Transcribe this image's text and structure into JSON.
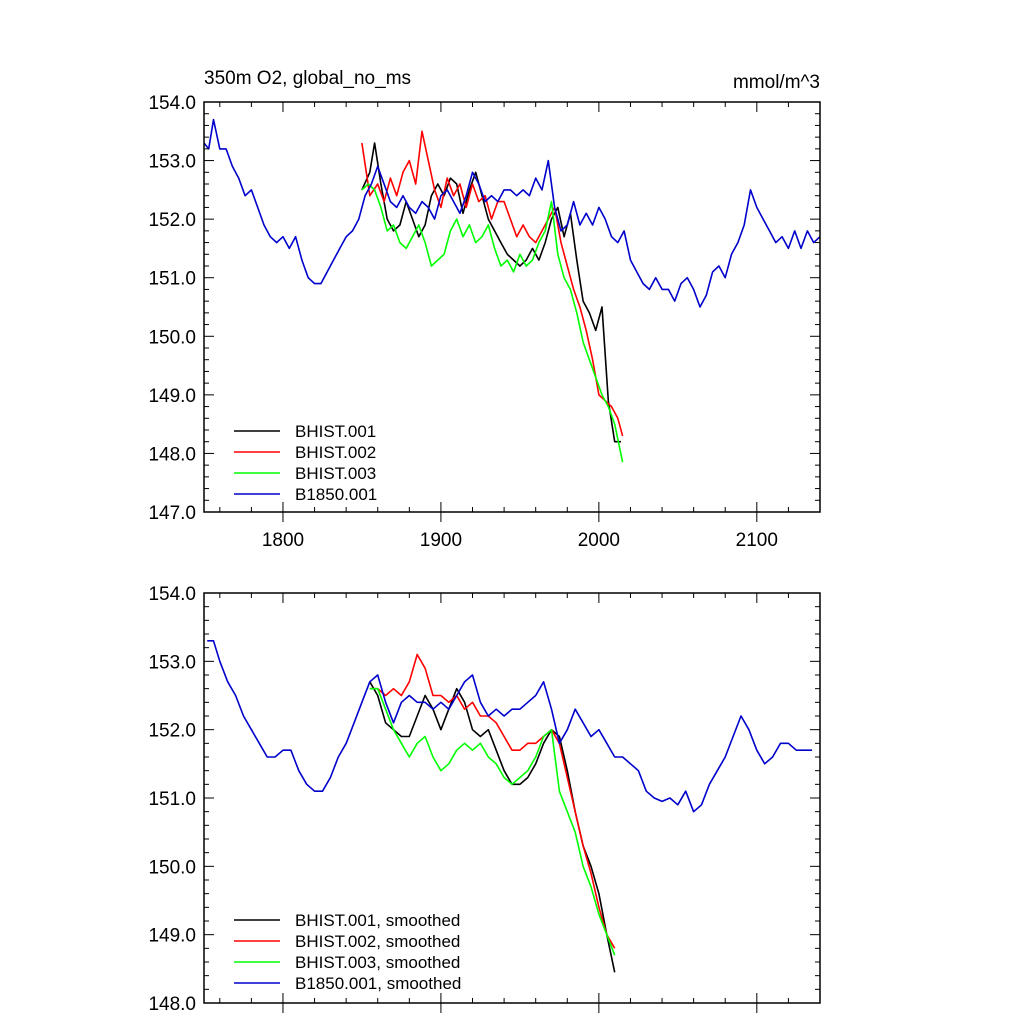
{
  "chart_data": [
    {
      "type": "line",
      "title": "350m O2, global_no_ms",
      "units": "mmol/m^3",
      "xlim": [
        1750,
        2140
      ],
      "ylim": [
        147.0,
        154.0
      ],
      "x_ticks": [
        1800,
        1900,
        2000,
        2100
      ],
      "x_tick_labels": [
        "1800",
        "1900",
        "2000",
        "2100"
      ],
      "y_ticks": [
        147,
        148,
        149,
        150,
        151,
        152,
        153,
        154
      ],
      "y_tick_labels": [
        "147.0",
        "148.0",
        "149.0",
        "150.0",
        "151.0",
        "152.0",
        "153.0",
        "154.0"
      ],
      "legend_position": "bottom-left",
      "series": [
        {
          "name": "BHIST.001",
          "color": "#000000",
          "x": [
            1850,
            1855,
            1858,
            1862,
            1866,
            1870,
            1874,
            1878,
            1882,
            1886,
            1890,
            1894,
            1898,
            1902,
            1906,
            1910,
            1914,
            1918,
            1922,
            1926,
            1930,
            1934,
            1938,
            1942,
            1946,
            1950,
            1954,
            1958,
            1962,
            1966,
            1970,
            1974,
            1978,
            1982,
            1986,
            1990,
            1994,
            1998,
            2002,
            2006,
            2010,
            2014
          ],
          "y": [
            152.5,
            152.8,
            153.3,
            152.6,
            152.0,
            151.8,
            151.9,
            152.3,
            152.0,
            151.7,
            151.9,
            152.4,
            152.6,
            152.4,
            152.7,
            152.6,
            152.1,
            152.5,
            152.8,
            152.4,
            152.0,
            151.8,
            151.6,
            151.4,
            151.3,
            151.2,
            151.3,
            151.5,
            151.3,
            151.6,
            152.0,
            152.2,
            151.7,
            152.1,
            151.3,
            150.6,
            150.4,
            150.1,
            150.5,
            148.9,
            148.2,
            148.2
          ]
        },
        {
          "name": "BHIST.002",
          "color": "#ff0000",
          "x": [
            1850,
            1855,
            1860,
            1864,
            1868,
            1872,
            1876,
            1880,
            1884,
            1888,
            1892,
            1896,
            1900,
            1904,
            1908,
            1912,
            1916,
            1920,
            1924,
            1928,
            1932,
            1936,
            1940,
            1944,
            1948,
            1952,
            1956,
            1960,
            1964,
            1968,
            1972,
            1976,
            1980,
            1984,
            1988,
            1992,
            1996,
            2000,
            2004,
            2008,
            2012,
            2015
          ],
          "y": [
            153.3,
            152.4,
            152.6,
            152.3,
            152.7,
            152.4,
            152.8,
            153.0,
            152.6,
            153.5,
            153.0,
            152.5,
            152.2,
            152.7,
            152.4,
            152.6,
            152.2,
            152.6,
            152.3,
            152.4,
            152.0,
            152.3,
            152.3,
            152.0,
            151.7,
            151.9,
            151.7,
            151.6,
            151.8,
            152.0,
            152.2,
            151.6,
            151.2,
            150.8,
            150.5,
            150.1,
            149.6,
            149.0,
            148.9,
            148.8,
            148.6,
            148.3
          ]
        },
        {
          "name": "BHIST.003",
          "color": "#00ff00",
          "x": [
            1850,
            1854,
            1858,
            1862,
            1866,
            1870,
            1874,
            1878,
            1882,
            1886,
            1890,
            1894,
            1898,
            1902,
            1906,
            1910,
            1914,
            1918,
            1922,
            1926,
            1930,
            1934,
            1938,
            1942,
            1946,
            1950,
            1954,
            1958,
            1962,
            1966,
            1970,
            1974,
            1978,
            1982,
            1986,
            1990,
            1994,
            1998,
            2002,
            2006,
            2010,
            2015
          ],
          "y": [
            152.5,
            152.6,
            152.5,
            152.2,
            151.8,
            151.9,
            151.6,
            151.5,
            151.7,
            151.9,
            151.6,
            151.2,
            151.3,
            151.4,
            151.8,
            152.0,
            151.7,
            151.9,
            151.6,
            151.7,
            151.9,
            151.5,
            151.2,
            151.3,
            151.1,
            151.4,
            151.2,
            151.3,
            151.6,
            151.8,
            152.3,
            151.4,
            151.0,
            150.8,
            150.4,
            149.9,
            149.6,
            149.3,
            149.0,
            148.8,
            148.5,
            147.85
          ]
        },
        {
          "name": "B1850.001",
          "color": "#0000cc",
          "x": [
            1750,
            1753,
            1756,
            1760,
            1764,
            1768,
            1772,
            1776,
            1780,
            1784,
            1788,
            1792,
            1796,
            1800,
            1804,
            1808,
            1812,
            1816,
            1820,
            1824,
            1828,
            1832,
            1836,
            1840,
            1844,
            1848,
            1852,
            1856,
            1860,
            1864,
            1868,
            1872,
            1876,
            1880,
            1884,
            1888,
            1892,
            1896,
            1900,
            1904,
            1908,
            1912,
            1916,
            1920,
            1924,
            1928,
            1932,
            1936,
            1940,
            1944,
            1948,
            1952,
            1956,
            1960,
            1964,
            1968,
            1972,
            1976,
            1980,
            1984,
            1988,
            1992,
            1996,
            2000,
            2004,
            2008,
            2012,
            2016,
            2020,
            2024,
            2028,
            2032,
            2036,
            2040,
            2044,
            2048,
            2052,
            2056,
            2060,
            2064,
            2068,
            2072,
            2076,
            2080,
            2084,
            2088,
            2092,
            2096,
            2100,
            2104,
            2108,
            2112,
            2116,
            2120,
            2124,
            2128,
            2132,
            2136,
            2140
          ],
          "y": [
            153.3,
            153.2,
            153.7,
            153.2,
            153.2,
            152.9,
            152.7,
            152.4,
            152.5,
            152.2,
            151.9,
            151.7,
            151.6,
            151.7,
            151.5,
            151.7,
            151.3,
            151.0,
            150.9,
            150.9,
            151.1,
            151.3,
            151.5,
            151.7,
            151.8,
            152.0,
            152.4,
            152.6,
            152.9,
            152.6,
            152.3,
            152.2,
            152.4,
            152.2,
            152.1,
            152.3,
            152.2,
            152.0,
            152.4,
            152.5,
            152.3,
            152.1,
            152.4,
            152.8,
            152.6,
            152.3,
            152.4,
            152.3,
            152.5,
            152.5,
            152.4,
            152.5,
            152.4,
            152.7,
            152.5,
            153.0,
            152.2,
            151.8,
            151.9,
            152.3,
            151.9,
            152.1,
            151.9,
            152.2,
            152.0,
            151.7,
            151.6,
            151.8,
            151.3,
            151.1,
            150.9,
            150.8,
            151.0,
            150.8,
            150.8,
            150.6,
            150.9,
            151.0,
            150.8,
            150.5,
            150.7,
            151.1,
            151.2,
            151.0,
            151.4,
            151.6,
            151.9,
            152.5,
            152.2,
            152.0,
            151.8,
            151.6,
            151.7,
            151.5,
            151.8,
            151.5,
            151.8,
            151.6,
            151.7
          ]
        }
      ]
    },
    {
      "type": "line",
      "xlim": [
        1750,
        2140
      ],
      "ylim": [
        148.0,
        154.0
      ],
      "x_ticks": [
        1800,
        1900,
        2000,
        2100
      ],
      "y_ticks": [
        148,
        149,
        150,
        151,
        152,
        153,
        154
      ],
      "y_tick_labels": [
        "148.0",
        "149.0",
        "150.0",
        "151.0",
        "152.0",
        "153.0",
        "154.0"
      ],
      "legend_position": "bottom-left",
      "series": [
        {
          "name": "BHIST.001, smoothed",
          "color": "#000000",
          "x": [
            1855,
            1860,
            1865,
            1870,
            1875,
            1880,
            1885,
            1890,
            1895,
            1900,
            1905,
            1910,
            1915,
            1920,
            1925,
            1930,
            1935,
            1940,
            1945,
            1950,
            1955,
            1960,
            1965,
            1970,
            1975,
            1980,
            1985,
            1990,
            1995,
            2000,
            2005,
            2010
          ],
          "y": [
            152.7,
            152.5,
            152.1,
            152.0,
            151.9,
            151.9,
            152.2,
            152.5,
            152.3,
            152.0,
            152.3,
            152.6,
            152.4,
            152.0,
            151.9,
            152.0,
            151.7,
            151.4,
            151.2,
            151.2,
            151.3,
            151.5,
            151.8,
            152.0,
            151.9,
            151.4,
            150.8,
            150.3,
            150.0,
            149.6,
            149.0,
            148.45
          ]
        },
        {
          "name": "BHIST.002, smoothed",
          "color": "#ff0000",
          "x": [
            1855,
            1860,
            1865,
            1870,
            1875,
            1880,
            1885,
            1890,
            1895,
            1900,
            1905,
            1910,
            1915,
            1920,
            1925,
            1930,
            1935,
            1940,
            1945,
            1950,
            1955,
            1960,
            1965,
            1970,
            1975,
            1980,
            1985,
            1990,
            1995,
            2000,
            2005,
            2010
          ],
          "y": [
            152.6,
            152.6,
            152.5,
            152.6,
            152.5,
            152.7,
            153.1,
            152.9,
            152.5,
            152.5,
            152.4,
            152.5,
            152.3,
            152.4,
            152.2,
            152.2,
            152.1,
            151.9,
            151.7,
            151.7,
            151.8,
            151.8,
            151.9,
            152.0,
            151.8,
            151.3,
            150.8,
            150.3,
            149.9,
            149.4,
            149.0,
            148.8
          ]
        },
        {
          "name": "BHIST.003, smoothed",
          "color": "#00ff00",
          "x": [
            1855,
            1860,
            1865,
            1870,
            1875,
            1880,
            1885,
            1890,
            1895,
            1900,
            1905,
            1910,
            1915,
            1920,
            1925,
            1930,
            1935,
            1940,
            1945,
            1950,
            1955,
            1960,
            1965,
            1970,
            1975,
            1980,
            1985,
            1990,
            1995,
            2000,
            2005,
            2010
          ],
          "y": [
            152.6,
            152.6,
            152.3,
            152.0,
            151.8,
            151.6,
            151.8,
            151.9,
            151.6,
            151.4,
            151.5,
            151.7,
            151.8,
            151.7,
            151.8,
            151.6,
            151.5,
            151.3,
            151.2,
            151.3,
            151.4,
            151.6,
            151.9,
            152.0,
            151.1,
            150.8,
            150.5,
            150.0,
            149.7,
            149.3,
            149.0,
            148.7
          ]
        },
        {
          "name": "B1850.001, smoothed",
          "color": "#0000cc",
          "x": [
            1752,
            1756,
            1760,
            1765,
            1770,
            1775,
            1780,
            1785,
            1790,
            1795,
            1800,
            1805,
            1810,
            1815,
            1820,
            1825,
            1830,
            1835,
            1840,
            1845,
            1850,
            1855,
            1860,
            1865,
            1870,
            1875,
            1880,
            1885,
            1890,
            1895,
            1900,
            1905,
            1910,
            1915,
            1920,
            1925,
            1930,
            1935,
            1940,
            1945,
            1950,
            1955,
            1960,
            1965,
            1970,
            1975,
            1980,
            1985,
            1990,
            1995,
            2000,
            2005,
            2010,
            2015,
            2020,
            2025,
            2030,
            2035,
            2040,
            2045,
            2050,
            2055,
            2060,
            2065,
            2070,
            2075,
            2080,
            2085,
            2090,
            2095,
            2100,
            2105,
            2110,
            2115,
            2120,
            2125,
            2130,
            2135
          ],
          "y": [
            153.3,
            153.3,
            153.0,
            152.7,
            152.5,
            152.2,
            152.0,
            151.8,
            151.6,
            151.6,
            151.7,
            151.7,
            151.4,
            151.2,
            151.1,
            151.1,
            151.3,
            151.6,
            151.8,
            152.1,
            152.4,
            152.7,
            152.8,
            152.4,
            152.1,
            152.4,
            152.5,
            152.4,
            152.4,
            152.3,
            152.4,
            152.3,
            152.5,
            152.7,
            152.8,
            152.4,
            152.2,
            152.3,
            152.2,
            152.3,
            152.3,
            152.4,
            152.5,
            152.7,
            152.3,
            151.8,
            152.0,
            152.3,
            152.1,
            151.9,
            152.0,
            151.8,
            151.6,
            151.6,
            151.5,
            151.4,
            151.1,
            151.0,
            150.95,
            151.0,
            150.9,
            151.1,
            150.8,
            150.9,
            151.2,
            151.4,
            151.6,
            151.9,
            152.2,
            152.0,
            151.7,
            151.5,
            151.6,
            151.8,
            151.8,
            151.7,
            151.7,
            151.7
          ]
        }
      ]
    }
  ]
}
